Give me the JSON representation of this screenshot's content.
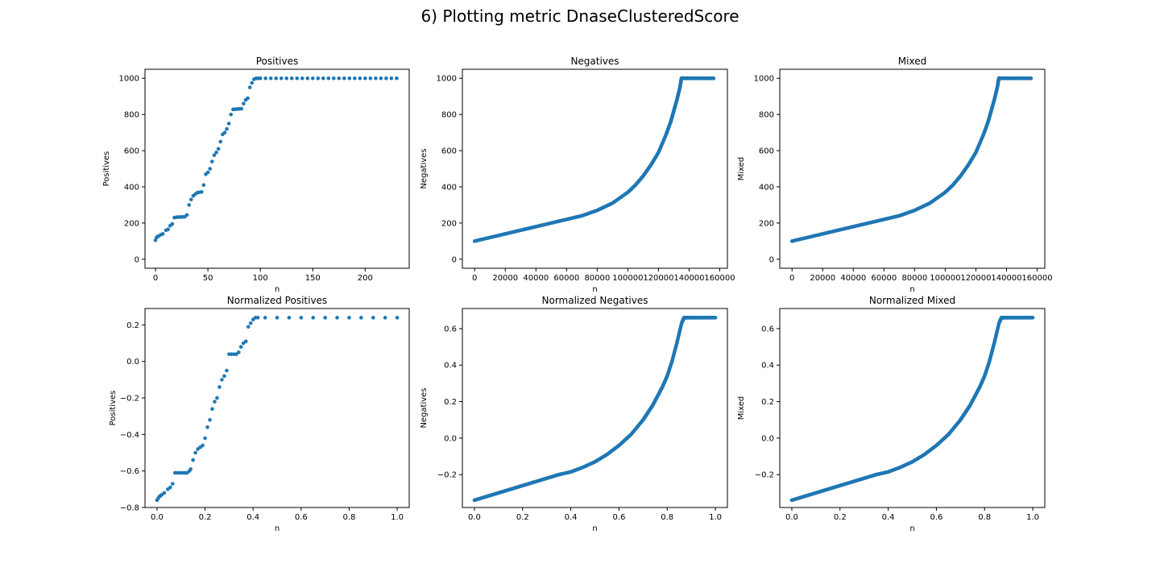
{
  "figure": {
    "title": "6) Plotting metric DnaseClusteredScore"
  },
  "colors": {
    "marker": "#1f77b4",
    "axis": "#000000"
  },
  "chart_data": [
    {
      "type": "scatter",
      "title": "Positives",
      "xlabel": "n",
      "ylabel": "Positives",
      "xlim": [
        -10,
        242
      ],
      "ylim": [
        -50,
        1050
      ],
      "xticks": [
        0,
        50,
        100,
        150,
        200
      ],
      "xtick_labels": [
        "0",
        "50",
        "100",
        "150",
        "200"
      ],
      "yticks": [
        0,
        200,
        400,
        600,
        800,
        1000
      ],
      "ytick_labels": [
        "0",
        "200",
        "400",
        "600",
        "800",
        "1000"
      ],
      "series": [
        {
          "marker": "dot",
          "x": [
            0,
            1,
            2,
            3,
            5,
            7,
            10,
            12,
            14,
            16,
            18,
            20,
            22,
            24,
            26,
            28,
            30,
            32,
            34,
            36,
            38,
            40,
            42,
            44,
            46,
            48,
            50,
            52,
            54,
            56,
            58,
            60,
            62,
            64,
            66,
            68,
            70,
            72,
            74,
            76,
            78,
            80,
            82,
            84,
            86,
            88,
            90,
            92,
            94,
            96,
            98,
            100,
            105,
            110,
            115,
            120,
            125,
            130,
            135,
            140,
            145,
            150,
            155,
            160,
            165,
            170,
            175,
            180,
            185,
            190,
            195,
            200,
            205,
            210,
            215,
            220,
            225,
            230
          ],
          "y": [
            105,
            120,
            125,
            128,
            135,
            140,
            160,
            165,
            185,
            195,
            230,
            232,
            233,
            233,
            234,
            235,
            245,
            300,
            330,
            350,
            360,
            368,
            370,
            372,
            410,
            470,
            480,
            500,
            540,
            575,
            590,
            610,
            650,
            690,
            700,
            720,
            750,
            800,
            828,
            829,
            830,
            831,
            832,
            860,
            880,
            890,
            950,
            975,
            995,
            1000,
            1000,
            1000,
            1000,
            1000,
            1000,
            1000,
            1000,
            1000,
            1000,
            1000,
            1000,
            1000,
            1000,
            1000,
            1000,
            1000,
            1000,
            1000,
            1000,
            1000,
            1000,
            1000,
            1000,
            1000,
            1000,
            1000,
            1000,
            1000
          ]
        }
      ]
    },
    {
      "type": "scatter",
      "title": "Negatives",
      "xlabel": "n",
      "ylabel": "Negatives",
      "xlim": [
        -8000,
        165000
      ],
      "ylim": [
        -50,
        1050
      ],
      "xticks": [
        0,
        20000,
        40000,
        60000,
        80000,
        100000,
        120000,
        140000,
        160000
      ],
      "xtick_labels": [
        "0",
        "20000",
        "40000",
        "60000",
        "80000",
        "100000",
        "120000",
        "140000",
        "160000"
      ],
      "yticks": [
        0,
        200,
        400,
        600,
        800,
        1000
      ],
      "ytick_labels": [
        "0",
        "200",
        "400",
        "600",
        "800",
        "1000"
      ],
      "series": [
        {
          "marker": "dot",
          "x": [
            0,
            10000,
            20000,
            30000,
            40000,
            50000,
            60000,
            70000,
            80000,
            90000,
            100000,
            105000,
            110000,
            115000,
            120000,
            125000,
            128000,
            130000,
            132000,
            134000,
            135000,
            136000,
            140000,
            145000,
            150000,
            156000
          ],
          "y": [
            100,
            120,
            140,
            160,
            180,
            200,
            220,
            240,
            270,
            310,
            370,
            410,
            460,
            520,
            590,
            690,
            760,
            820,
            880,
            950,
            1000,
            1000,
            1000,
            1000,
            1000,
            1000
          ]
        }
      ]
    },
    {
      "type": "scatter",
      "title": "Mixed",
      "xlabel": "n",
      "ylabel": "Mixed",
      "xlim": [
        -8000,
        165000
      ],
      "ylim": [
        -50,
        1050
      ],
      "xticks": [
        0,
        20000,
        40000,
        60000,
        80000,
        100000,
        120000,
        140000,
        160000
      ],
      "xtick_labels": [
        "0",
        "20000",
        "40000",
        "60000",
        "80000",
        "100000",
        "120000",
        "140000",
        "160000"
      ],
      "yticks": [
        0,
        200,
        400,
        600,
        800,
        1000
      ],
      "ytick_labels": [
        "0",
        "200",
        "400",
        "600",
        "800",
        "1000"
      ],
      "series": [
        {
          "marker": "dot",
          "x": [
            0,
            10000,
            20000,
            30000,
            40000,
            50000,
            60000,
            70000,
            80000,
            90000,
            100000,
            105000,
            110000,
            115000,
            120000,
            125000,
            128000,
            130000,
            132000,
            134000,
            135000,
            136000,
            140000,
            145000,
            150000,
            156000
          ],
          "y": [
            100,
            120,
            140,
            160,
            180,
            200,
            220,
            240,
            270,
            310,
            370,
            410,
            460,
            520,
            590,
            690,
            760,
            820,
            880,
            950,
            1000,
            1000,
            1000,
            1000,
            1000,
            1000
          ]
        }
      ]
    },
    {
      "type": "scatter",
      "title": "Normalized Positives",
      "xlabel": "n",
      "ylabel": "Positives",
      "xlim": [
        -0.05,
        1.05
      ],
      "ylim": [
        -0.8,
        0.29
      ],
      "xticks": [
        0.0,
        0.2,
        0.4,
        0.6,
        0.8,
        1.0
      ],
      "xtick_labels": [
        "0.0",
        "0.2",
        "0.4",
        "0.6",
        "0.8",
        "1.0"
      ],
      "yticks": [
        -0.8,
        -0.6,
        -0.4,
        -0.2,
        0.0,
        0.2
      ],
      "ytick_labels": [
        "−0.8",
        "−0.6",
        "−0.4",
        "−0.2",
        "0.0",
        "0.2"
      ],
      "series": [
        {
          "marker": "dot",
          "x": [
            0.0,
            0.005,
            0.01,
            0.015,
            0.02,
            0.03,
            0.045,
            0.055,
            0.065,
            0.075,
            0.085,
            0.095,
            0.105,
            0.115,
            0.125,
            0.135,
            0.14,
            0.15,
            0.16,
            0.17,
            0.18,
            0.19,
            0.2,
            0.21,
            0.22,
            0.23,
            0.24,
            0.25,
            0.26,
            0.27,
            0.28,
            0.29,
            0.3,
            0.31,
            0.32,
            0.33,
            0.34,
            0.35,
            0.36,
            0.37,
            0.38,
            0.39,
            0.4,
            0.41,
            0.42,
            0.45,
            0.5,
            0.55,
            0.6,
            0.65,
            0.7,
            0.75,
            0.8,
            0.85,
            0.9,
            0.95,
            1.0
          ],
          "y": [
            -0.76,
            -0.75,
            -0.74,
            -0.735,
            -0.73,
            -0.72,
            -0.7,
            -0.69,
            -0.67,
            -0.61,
            -0.61,
            -0.61,
            -0.61,
            -0.61,
            -0.61,
            -0.6,
            -0.59,
            -0.54,
            -0.5,
            -0.48,
            -0.47,
            -0.46,
            -0.42,
            -0.36,
            -0.32,
            -0.26,
            -0.22,
            -0.2,
            -0.14,
            -0.1,
            -0.08,
            -0.05,
            0.04,
            0.04,
            0.04,
            0.04,
            0.05,
            0.08,
            0.1,
            0.11,
            0.19,
            0.21,
            0.23,
            0.24,
            0.24,
            0.24,
            0.24,
            0.24,
            0.24,
            0.24,
            0.24,
            0.24,
            0.24,
            0.24,
            0.24,
            0.24,
            0.24
          ]
        }
      ]
    },
    {
      "type": "scatter",
      "title": "Normalized Negatives",
      "xlabel": "n",
      "ylabel": "Negatives",
      "xlim": [
        -0.05,
        1.05
      ],
      "ylim": [
        -0.38,
        0.71
      ],
      "xticks": [
        0.0,
        0.2,
        0.4,
        0.6,
        0.8,
        1.0
      ],
      "xtick_labels": [
        "0.0",
        "0.2",
        "0.4",
        "0.6",
        "0.8",
        "1.0"
      ],
      "yticks": [
        -0.2,
        0.0,
        0.2,
        0.4,
        0.6
      ],
      "ytick_labels": [
        "−0.2",
        "0.0",
        "0.2",
        "0.4",
        "0.6"
      ],
      "series": [
        {
          "marker": "dot",
          "x": [
            0.0,
            0.05,
            0.1,
            0.15,
            0.2,
            0.25,
            0.3,
            0.35,
            0.4,
            0.45,
            0.5,
            0.55,
            0.6,
            0.65,
            0.7,
            0.72,
            0.74,
            0.76,
            0.78,
            0.8,
            0.82,
            0.84,
            0.86,
            0.87,
            0.88,
            0.9,
            0.93,
            0.96,
            1.0
          ],
          "y": [
            -0.34,
            -0.32,
            -0.3,
            -0.28,
            -0.26,
            -0.24,
            -0.22,
            -0.2,
            -0.185,
            -0.16,
            -0.13,
            -0.09,
            -0.04,
            0.02,
            0.1,
            0.14,
            0.18,
            0.23,
            0.28,
            0.34,
            0.42,
            0.52,
            0.63,
            0.66,
            0.66,
            0.66,
            0.66,
            0.66,
            0.66
          ]
        }
      ]
    },
    {
      "type": "scatter",
      "title": "Normalized Mixed",
      "xlabel": "n",
      "ylabel": "Mixed",
      "xlim": [
        -0.05,
        1.05
      ],
      "ylim": [
        -0.38,
        0.71
      ],
      "xticks": [
        0.0,
        0.2,
        0.4,
        0.6,
        0.8,
        1.0
      ],
      "xtick_labels": [
        "0.0",
        "0.2",
        "0.4",
        "0.6",
        "0.8",
        "1.0"
      ],
      "yticks": [
        -0.2,
        0.0,
        0.2,
        0.4,
        0.6
      ],
      "ytick_labels": [
        "−0.2",
        "0.0",
        "0.2",
        "0.4",
        "0.6"
      ],
      "series": [
        {
          "marker": "dot",
          "x": [
            0.0,
            0.05,
            0.1,
            0.15,
            0.2,
            0.25,
            0.3,
            0.35,
            0.4,
            0.45,
            0.5,
            0.55,
            0.6,
            0.65,
            0.7,
            0.72,
            0.74,
            0.76,
            0.78,
            0.8,
            0.82,
            0.84,
            0.86,
            0.87,
            0.88,
            0.9,
            0.93,
            0.96,
            1.0
          ],
          "y": [
            -0.34,
            -0.32,
            -0.3,
            -0.28,
            -0.26,
            -0.24,
            -0.22,
            -0.2,
            -0.185,
            -0.16,
            -0.13,
            -0.09,
            -0.04,
            0.02,
            0.1,
            0.14,
            0.18,
            0.23,
            0.28,
            0.34,
            0.42,
            0.52,
            0.63,
            0.66,
            0.66,
            0.66,
            0.66,
            0.66,
            0.66
          ]
        }
      ]
    }
  ]
}
